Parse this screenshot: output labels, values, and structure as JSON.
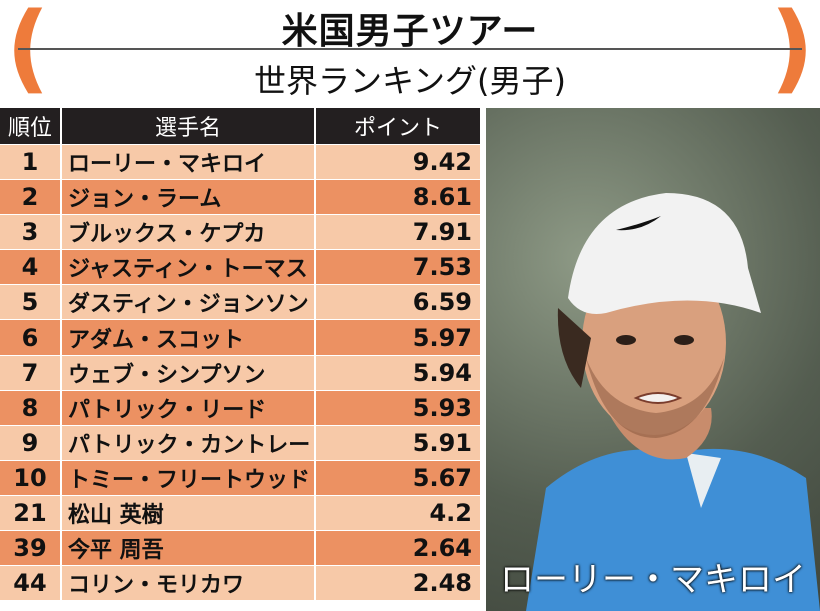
{
  "header": {
    "title": "米国男子ツアー",
    "subtitle": "世界ランキング(男子)"
  },
  "table": {
    "columns": [
      "順位",
      "選手名",
      "ポイント"
    ],
    "rows": [
      {
        "rank": "1",
        "name": "ローリー・マキロイ",
        "points": "9.42"
      },
      {
        "rank": "2",
        "name": "ジョン・ラーム",
        "points": "8.61"
      },
      {
        "rank": "3",
        "name": "ブルックス・ケプカ",
        "points": "7.91"
      },
      {
        "rank": "4",
        "name": "ジャスティン・トーマス",
        "points": "7.53"
      },
      {
        "rank": "5",
        "name": "ダスティン・ジョンソン",
        "points": "6.59"
      },
      {
        "rank": "6",
        "name": "アダム・スコット",
        "points": "5.97"
      },
      {
        "rank": "7",
        "name": "ウェブ・シンプソン",
        "points": "5.94"
      },
      {
        "rank": "8",
        "name": "パトリック・リード",
        "points": "5.93"
      },
      {
        "rank": "9",
        "name": "パトリック・カントレー",
        "points": "5.91"
      },
      {
        "rank": "10",
        "name": "トミー・フリートウッド",
        "points": "5.67"
      },
      {
        "rank": "21",
        "name": "松山 英樹",
        "points": "4.2"
      },
      {
        "rank": "39",
        "name": "今平 周吾",
        "points": "2.64"
      },
      {
        "rank": "44",
        "name": "コリン・モリカワ",
        "points": "2.48"
      }
    ]
  },
  "photo": {
    "caption": "ローリー・マキロイ"
  },
  "colors": {
    "accent": "#ee7b3b",
    "row_light": "#f7c9a8",
    "row_dark": "#ec9162",
    "header_bg": "#231f20"
  }
}
